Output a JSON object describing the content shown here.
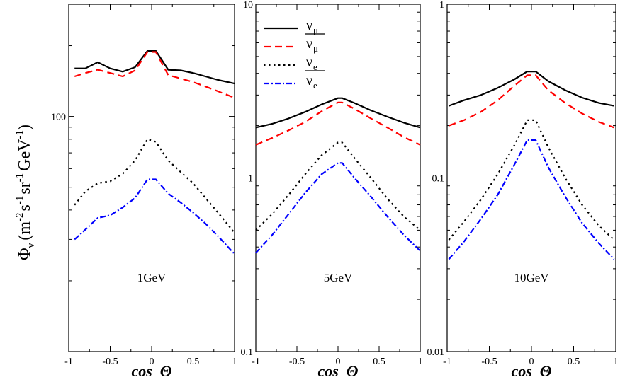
{
  "ylabel": {
    "main": "Φ",
    "sub": "ν",
    "rest": "(m",
    "e1": "-2",
    "s": "s",
    "e2": "-1",
    "sr": "sr",
    "e3": "-1",
    "gev": "GeV",
    "e4": "-1",
    "close": ")"
  },
  "legend": [
    {
      "name": "ν",
      "sub": "μ",
      "bar": false,
      "color": "#000000",
      "dash": "solid"
    },
    {
      "name": "ν",
      "sub": "μ",
      "bar": true,
      "color": "#ff0000",
      "dash": "dashed"
    },
    {
      "name": "ν",
      "sub": "e",
      "bar": false,
      "color": "#000000",
      "dash": "dotted"
    },
    {
      "name": "ν",
      "sub": "e",
      "bar": true,
      "color": "#0000ff",
      "dash": "dashdot"
    }
  ],
  "chart_data": [
    {
      "type": "line",
      "energy_label": "1GeV",
      "xlabel": "cos  Θ",
      "xlim": [
        -1,
        1
      ],
      "ylim": [
        10,
        300
      ],
      "yscale": "log",
      "xticks": [
        "-1",
        "-0.5",
        "0",
        "0.5",
        "1"
      ],
      "yticks": [
        {
          "v": 100,
          "label": "100"
        }
      ],
      "x": [
        -0.93,
        -0.8,
        -0.65,
        -0.5,
        -0.35,
        -0.2,
        -0.05,
        0.05,
        0.2,
        0.35,
        0.5,
        0.65,
        0.8,
        1.0
      ],
      "series": [
        {
          "values": [
            160,
            160,
            170,
            160,
            155,
            162,
            190,
            190,
            158,
            157,
            153,
            148,
            143,
            138
          ]
        },
        {
          "values": [
            148,
            153,
            158,
            153,
            148,
            157,
            188,
            188,
            150,
            145,
            140,
            134,
            128,
            120
          ]
        },
        {
          "values": [
            42,
            48,
            52,
            53,
            57,
            65,
            80,
            78,
            65,
            58,
            52,
            45,
            39,
            32
          ]
        },
        {
          "values": [
            30,
            33,
            37,
            38,
            41,
            45,
            54,
            54,
            47,
            43,
            39,
            35,
            31,
            26
          ]
        }
      ]
    },
    {
      "type": "line",
      "energy_label": "5GeV",
      "xlabel": "cos  Θ",
      "xlim": [
        -1,
        1
      ],
      "ylim": [
        0.1,
        10
      ],
      "yscale": "log",
      "xticks": [
        "-1",
        "-0.5",
        "0",
        "0.5",
        "1"
      ],
      "yticks": [
        {
          "v": 0.1,
          "label": "0.1"
        },
        {
          "v": 1,
          "label": "1"
        },
        {
          "v": 10,
          "label": "10"
        }
      ],
      "x": [
        -1.0,
        -0.8,
        -0.6,
        -0.4,
        -0.2,
        0.0,
        0.05,
        0.2,
        0.4,
        0.6,
        0.8,
        1.0
      ],
      "series": [
        {
          "values": [
            1.95,
            2.05,
            2.2,
            2.4,
            2.65,
            2.88,
            2.88,
            2.7,
            2.45,
            2.25,
            2.08,
            1.95
          ]
        },
        {
          "values": [
            1.55,
            1.7,
            1.88,
            2.1,
            2.42,
            2.72,
            2.72,
            2.5,
            2.2,
            1.95,
            1.72,
            1.55
          ]
        },
        {
          "values": [
            0.5,
            0.62,
            0.8,
            1.05,
            1.35,
            1.6,
            1.6,
            1.3,
            1.0,
            0.76,
            0.6,
            0.5
          ]
        },
        {
          "values": [
            0.37,
            0.47,
            0.62,
            0.82,
            1.05,
            1.22,
            1.22,
            1.0,
            0.78,
            0.6,
            0.47,
            0.38
          ]
        }
      ]
    },
    {
      "type": "line",
      "energy_label": "10GeV",
      "xlabel": "cos  Θ",
      "xlim": [
        -1,
        1
      ],
      "ylim": [
        0.01,
        1
      ],
      "yscale": "log",
      "xticks": [
        "-1",
        "-0.5",
        "0",
        "0.5",
        "1"
      ],
      "yticks": [
        {
          "v": 0.01,
          "label": "0.01"
        },
        {
          "v": 0.1,
          "label": "0.1"
        },
        {
          "v": 1,
          "label": "1"
        }
      ],
      "x": [
        -0.98,
        -0.8,
        -0.6,
        -0.4,
        -0.2,
        -0.05,
        0.05,
        0.2,
        0.4,
        0.6,
        0.8,
        0.98
      ],
      "series": [
        {
          "values": [
            0.26,
            0.28,
            0.3,
            0.33,
            0.37,
            0.41,
            0.41,
            0.36,
            0.32,
            0.29,
            0.27,
            0.26
          ]
        },
        {
          "values": [
            0.2,
            0.215,
            0.24,
            0.28,
            0.34,
            0.39,
            0.39,
            0.32,
            0.27,
            0.235,
            0.21,
            0.195
          ]
        },
        {
          "values": [
            0.044,
            0.056,
            0.075,
            0.105,
            0.155,
            0.215,
            0.215,
            0.15,
            0.1,
            0.07,
            0.053,
            0.044
          ]
        },
        {
          "values": [
            0.034,
            0.043,
            0.058,
            0.08,
            0.12,
            0.165,
            0.165,
            0.115,
            0.078,
            0.055,
            0.042,
            0.034
          ]
        }
      ]
    }
  ]
}
